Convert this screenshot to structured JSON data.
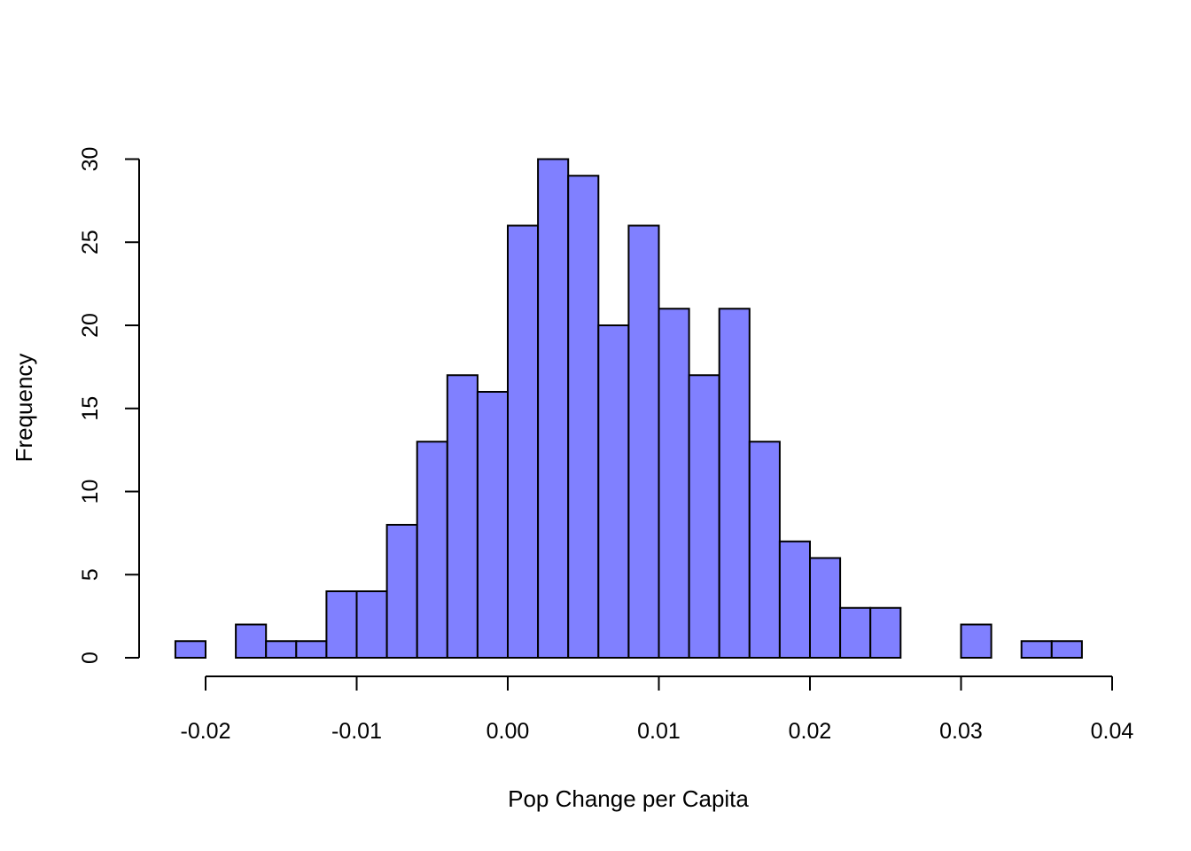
{
  "chart_data": {
    "type": "bar",
    "title": "",
    "xlabel": "Pop Change per Capita",
    "ylabel": "Frequency",
    "bins": [
      {
        "x0": -0.022,
        "x1": -0.02,
        "count": 1
      },
      {
        "x0": -0.02,
        "x1": -0.018,
        "count": 0
      },
      {
        "x0": -0.018,
        "x1": -0.016,
        "count": 2
      },
      {
        "x0": -0.016,
        "x1": -0.014,
        "count": 1
      },
      {
        "x0": -0.014,
        "x1": -0.012,
        "count": 1
      },
      {
        "x0": -0.012,
        "x1": -0.01,
        "count": 4
      },
      {
        "x0": -0.01,
        "x1": -0.008,
        "count": 4
      },
      {
        "x0": -0.008,
        "x1": -0.006,
        "count": 8
      },
      {
        "x0": -0.006,
        "x1": -0.004,
        "count": 13
      },
      {
        "x0": -0.004,
        "x1": -0.002,
        "count": 17
      },
      {
        "x0": -0.002,
        "x1": 0.0,
        "count": 16
      },
      {
        "x0": 0.0,
        "x1": 0.002,
        "count": 26
      },
      {
        "x0": 0.002,
        "x1": 0.004,
        "count": 30
      },
      {
        "x0": 0.004,
        "x1": 0.006,
        "count": 29
      },
      {
        "x0": 0.006,
        "x1": 0.008,
        "count": 20
      },
      {
        "x0": 0.008,
        "x1": 0.01,
        "count": 26
      },
      {
        "x0": 0.01,
        "x1": 0.012,
        "count": 21
      },
      {
        "x0": 0.012,
        "x1": 0.014,
        "count": 17
      },
      {
        "x0": 0.014,
        "x1": 0.016,
        "count": 21
      },
      {
        "x0": 0.016,
        "x1": 0.018,
        "count": 13
      },
      {
        "x0": 0.018,
        "x1": 0.02,
        "count": 7
      },
      {
        "x0": 0.02,
        "x1": 0.022,
        "count": 6
      },
      {
        "x0": 0.022,
        "x1": 0.024,
        "count": 3
      },
      {
        "x0": 0.024,
        "x1": 0.026,
        "count": 3
      },
      {
        "x0": 0.026,
        "x1": 0.028,
        "count": 0
      },
      {
        "x0": 0.028,
        "x1": 0.03,
        "count": 0
      },
      {
        "x0": 0.03,
        "x1": 0.032,
        "count": 2
      },
      {
        "x0": 0.032,
        "x1": 0.034,
        "count": 0
      },
      {
        "x0": 0.034,
        "x1": 0.036,
        "count": 1
      },
      {
        "x0": 0.036,
        "x1": 0.038,
        "count": 1
      }
    ],
    "xlim": [
      -0.022,
      0.038
    ],
    "ylim": [
      0,
      30
    ],
    "x_ticks": [
      -0.02,
      -0.01,
      0.0,
      0.01,
      0.02,
      0.03,
      0.04
    ],
    "x_tick_labels": [
      "-0.02",
      "-0.01",
      "0.00",
      "0.01",
      "0.02",
      "0.03",
      "0.04"
    ],
    "y_ticks": [
      0,
      5,
      10,
      15,
      20,
      25,
      30
    ],
    "y_tick_labels": [
      "0",
      "5",
      "10",
      "15",
      "20",
      "25",
      "30"
    ],
    "bar_color": "#8080ff",
    "grid": false,
    "legend": "none"
  }
}
